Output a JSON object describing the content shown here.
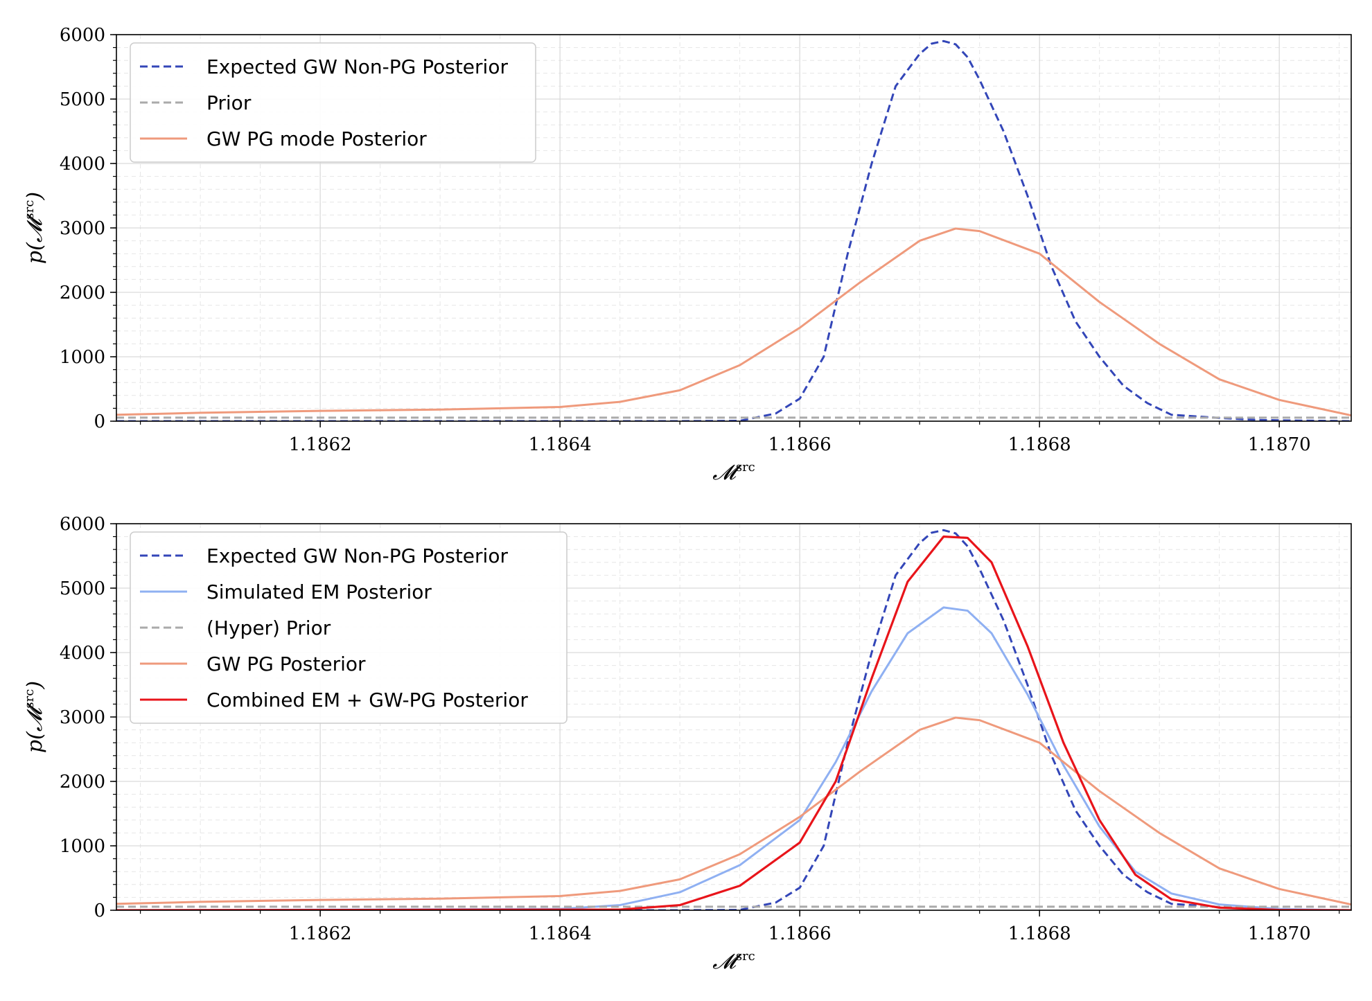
{
  "chart_data": [
    {
      "type": "line",
      "xlabel": "𝓜src",
      "ylabel": "p(𝓜src)",
      "xlim": [
        1.18603,
        1.18706
      ],
      "ylim": [
        0,
        6000
      ],
      "xticks": [
        1.1862,
        1.1864,
        1.1866,
        1.1868,
        1.187
      ],
      "xtick_labels": [
        "1.1862",
        "1.1864",
        "1.1866",
        "1.1868",
        "1.1870"
      ],
      "yticks": [
        0,
        1000,
        2000,
        3000,
        4000,
        5000,
        6000
      ],
      "ytick_labels": [
        "0",
        "1000",
        "2000",
        "3000",
        "4000",
        "5000",
        "6000"
      ],
      "grid": true,
      "legend_position": "top-left",
      "series": [
        {
          "name": "Expected GW Non-PG Posterior",
          "color": "#3346b8",
          "style": "dashed",
          "x": [
            1.18603,
            1.1865,
            1.18655,
            1.18658,
            1.1866,
            1.18662,
            1.18664,
            1.18666,
            1.18668,
            1.1867,
            1.18671,
            1.18672,
            1.18673,
            1.18674,
            1.18675,
            1.18677,
            1.18679,
            1.18681,
            1.18683,
            1.18685,
            1.18687,
            1.18689,
            1.18691,
            1.18695,
            1.18698,
            1.18701,
            1.18706
          ],
          "y": [
            0,
            0,
            5,
            120,
            350,
            1000,
            2600,
            4000,
            5200,
            5700,
            5860,
            5900,
            5850,
            5650,
            5300,
            4500,
            3500,
            2400,
            1550,
            1000,
            550,
            280,
            100,
            50,
            20,
            10,
            0
          ]
        },
        {
          "name": "Prior",
          "color": "#aaaaaa",
          "style": "dashed",
          "x": [
            1.18603,
            1.18706
          ],
          "y": [
            55,
            55
          ]
        },
        {
          "name": "GW PG mode Posterior",
          "color": "#ef9a7c",
          "style": "solid",
          "x": [
            1.18603,
            1.1861,
            1.1862,
            1.1863,
            1.1864,
            1.18645,
            1.1865,
            1.18655,
            1.1866,
            1.18665,
            1.1867,
            1.18673,
            1.18675,
            1.1868,
            1.18685,
            1.1869,
            1.18695,
            1.187,
            1.18706
          ],
          "y": [
            100,
            130,
            160,
            180,
            220,
            300,
            480,
            870,
            1450,
            2150,
            2800,
            2990,
            2950,
            2600,
            1850,
            1200,
            650,
            330,
            90
          ]
        }
      ]
    },
    {
      "type": "line",
      "xlabel": "𝓜src",
      "ylabel": "p(𝓜src)",
      "xlim": [
        1.18603,
        1.18706
      ],
      "ylim": [
        0,
        6000
      ],
      "xticks": [
        1.1862,
        1.1864,
        1.1866,
        1.1868,
        1.187
      ],
      "xtick_labels": [
        "1.1862",
        "1.1864",
        "1.1866",
        "1.1868",
        "1.1870"
      ],
      "yticks": [
        0,
        1000,
        2000,
        3000,
        4000,
        5000,
        6000
      ],
      "ytick_labels": [
        "0",
        "1000",
        "2000",
        "3000",
        "4000",
        "5000",
        "6000"
      ],
      "grid": true,
      "legend_position": "top-left",
      "series": [
        {
          "name": "Expected GW Non-PG Posterior",
          "color": "#3346b8",
          "style": "dashed",
          "x": [
            1.18603,
            1.1865,
            1.18655,
            1.18658,
            1.1866,
            1.18662,
            1.18664,
            1.18666,
            1.18668,
            1.1867,
            1.18671,
            1.18672,
            1.18673,
            1.18674,
            1.18675,
            1.18677,
            1.18679,
            1.18681,
            1.18683,
            1.18685,
            1.18687,
            1.18689,
            1.18691,
            1.18695,
            1.18698,
            1.18701,
            1.18706
          ],
          "y": [
            0,
            0,
            5,
            120,
            350,
            1000,
            2600,
            4000,
            5200,
            5700,
            5860,
            5900,
            5850,
            5650,
            5300,
            4500,
            3500,
            2400,
            1550,
            1000,
            550,
            280,
            100,
            50,
            20,
            10,
            0
          ]
        },
        {
          "name": "Simulated EM Posterior",
          "color": "#8fb0f2",
          "style": "solid",
          "x": [
            1.18603,
            1.1864,
            1.18645,
            1.1865,
            1.18655,
            1.1866,
            1.18663,
            1.18666,
            1.18669,
            1.18672,
            1.18674,
            1.18676,
            1.18679,
            1.18682,
            1.18685,
            1.18688,
            1.18691,
            1.18695,
            1.187,
            1.18706
          ],
          "y": [
            0,
            20,
            80,
            280,
            700,
            1400,
            2300,
            3400,
            4300,
            4700,
            4650,
            4300,
            3350,
            2250,
            1300,
            600,
            260,
            90,
            20,
            0
          ]
        },
        {
          "name": "(Hyper) Prior",
          "color": "#aaaaaa",
          "style": "dashed",
          "x": [
            1.18603,
            1.18706
          ],
          "y": [
            55,
            55
          ]
        },
        {
          "name": "GW PG Posterior",
          "color": "#ef9a7c",
          "style": "solid",
          "x": [
            1.18603,
            1.1861,
            1.1862,
            1.1863,
            1.1864,
            1.18645,
            1.1865,
            1.18655,
            1.1866,
            1.18665,
            1.1867,
            1.18673,
            1.18675,
            1.1868,
            1.18685,
            1.1869,
            1.18695,
            1.187,
            1.18706
          ],
          "y": [
            100,
            130,
            160,
            180,
            220,
            300,
            480,
            870,
            1450,
            2150,
            2800,
            2990,
            2950,
            2600,
            1850,
            1200,
            650,
            330,
            90
          ]
        },
        {
          "name": "Combined EM + GW-PG Posterior",
          "color": "#e8141a",
          "style": "solid",
          "x": [
            1.18603,
            1.18645,
            1.1865,
            1.18655,
            1.1866,
            1.18663,
            1.18666,
            1.18669,
            1.18672,
            1.18674,
            1.18676,
            1.18679,
            1.18682,
            1.18685,
            1.18688,
            1.18691,
            1.18695,
            1.187,
            1.18706
          ],
          "y": [
            0,
            10,
            80,
            380,
            1050,
            2000,
            3600,
            5100,
            5800,
            5780,
            5400,
            4100,
            2600,
            1400,
            550,
            170,
            40,
            5,
            0
          ]
        }
      ]
    }
  ]
}
